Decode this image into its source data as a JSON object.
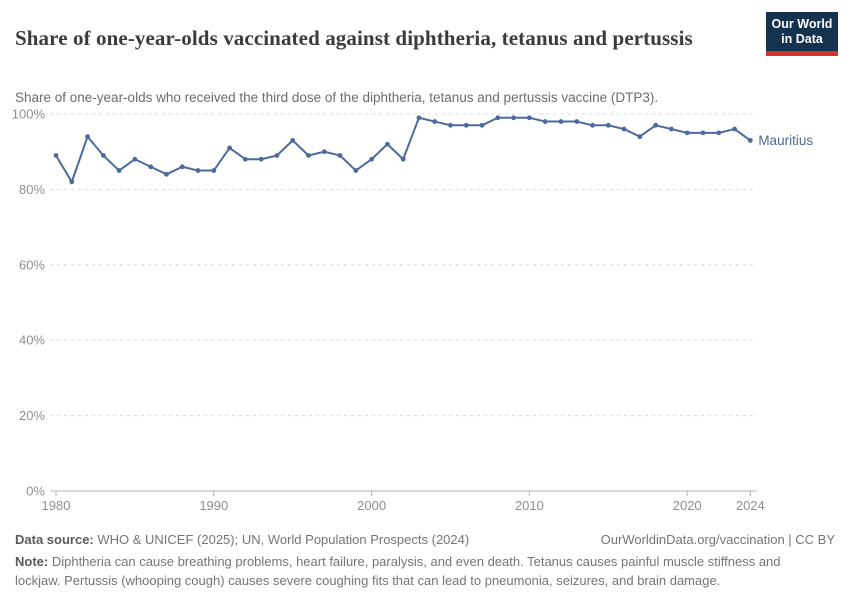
{
  "header": {
    "title": "Share of one-year-olds vaccinated against diphtheria, tetanus and pertussis",
    "subtitle": "Share of one-year-olds who received the third dose of the diphtheria, tetanus and pertussis vaccine (DTP3)."
  },
  "logo": {
    "line1": "Our World",
    "line2": "in Data",
    "bg_color": "#15334e",
    "stripe_color": "#d0342c"
  },
  "chart_data": {
    "type": "line",
    "title": "Share of one-year-olds vaccinated against diphtheria, tetanus and pertussis",
    "xlabel": "",
    "ylabel": "",
    "xlim": [
      1980,
      2024
    ],
    "ylim": [
      0,
      100
    ],
    "grid": "horizontal-dashed",
    "legend": "end-of-line-label",
    "x": [
      1980,
      1981,
      1982,
      1983,
      1984,
      1985,
      1986,
      1987,
      1988,
      1989,
      1990,
      1991,
      1992,
      1993,
      1994,
      1995,
      1996,
      1997,
      1998,
      1999,
      2000,
      2001,
      2002,
      2003,
      2004,
      2005,
      2006,
      2007,
      2008,
      2009,
      2010,
      2011,
      2012,
      2013,
      2014,
      2015,
      2016,
      2017,
      2018,
      2019,
      2020,
      2021,
      2022,
      2023,
      2024
    ],
    "series": [
      {
        "name": "Mauritius",
        "color": "#4c6a9c",
        "values": [
          89,
          82,
          94,
          89,
          85,
          88,
          86,
          84,
          86,
          85,
          85,
          91,
          88,
          88,
          89,
          93,
          89,
          90,
          89,
          85,
          88,
          92,
          88,
          99,
          98,
          97,
          97,
          97,
          99,
          99,
          99,
          98,
          98,
          98,
          97,
          97,
          96,
          94,
          97,
          96,
          95,
          95,
          95,
          96,
          93
        ]
      }
    ],
    "x_ticks": [
      {
        "v": 1980,
        "label": "1980"
      },
      {
        "v": 1990,
        "label": "1990"
      },
      {
        "v": 2000,
        "label": "2000"
      },
      {
        "v": 2010,
        "label": "2010"
      },
      {
        "v": 2020,
        "label": "2020"
      },
      {
        "v": 2024,
        "label": "2024"
      }
    ],
    "y_ticks": [
      {
        "v": 0,
        "label": "0%"
      },
      {
        "v": 20,
        "label": "20%"
      },
      {
        "v": 40,
        "label": "40%"
      },
      {
        "v": 60,
        "label": "60%"
      },
      {
        "v": 80,
        "label": "80%"
      },
      {
        "v": 100,
        "label": "100%"
      }
    ],
    "colors": {
      "line": "#4c6a9c",
      "grid": "#dcdcdc",
      "axis": "#b3b3b3",
      "tick_label": "#8f8f8f"
    }
  },
  "footer": {
    "datasource_label": "Data source:",
    "datasource_text": " WHO & UNICEF (2025); UN, World Population Prospects (2024)",
    "license_link": "OurWorldinData.org/vaccination | CC BY",
    "note_label": "Note:",
    "note_text": " Diphtheria can cause breathing problems, heart failure, paralysis, and even death. Tetanus causes painful muscle stiffness and lockjaw. Pertussis (whooping cough) causes severe coughing fits that can lead to pneumonia, seizures, and brain damage."
  }
}
